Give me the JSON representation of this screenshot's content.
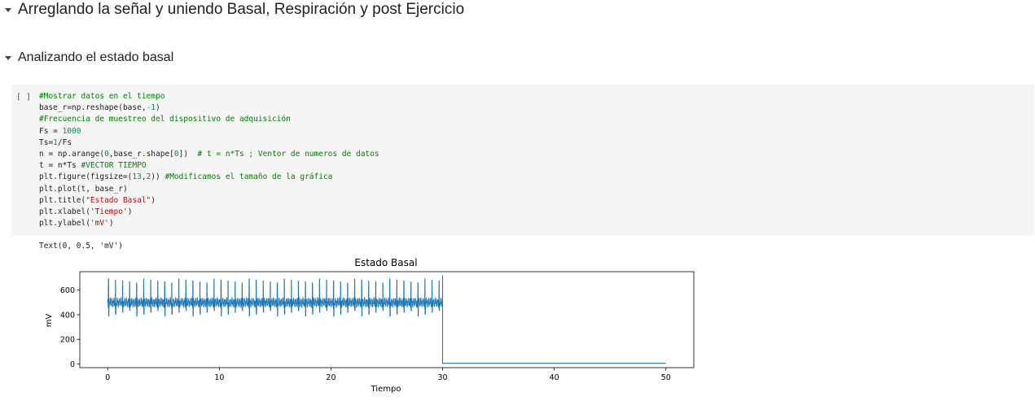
{
  "sections": [
    {
      "title": "Arreglando la señal y uniendo Basal, Respiración y post Ejercicio"
    },
    {
      "title": "Analizando el estado basal"
    }
  ],
  "cell": {
    "run_indicator": "[ ]",
    "code_lines": [
      [
        {
          "t": "#Mostrar datos en el tiempo",
          "c": "c"
        }
      ],
      [
        {
          "t": "base_r=np.reshape(base,"
        },
        {
          "t": "-1",
          "c": "n"
        },
        {
          "t": ")"
        }
      ],
      [
        {
          "t": "#Frecuencia de muestreo del dispositivo de adquisición",
          "c": "c"
        }
      ],
      [
        {
          "t": "Fs = "
        },
        {
          "t": "1000",
          "c": "n"
        }
      ],
      [
        {
          "t": "Ts="
        },
        {
          "t": "1",
          "c": "n"
        },
        {
          "t": "/Fs"
        }
      ],
      [
        {
          "t": "n = np.arange("
        },
        {
          "t": "0",
          "c": "n"
        },
        {
          "t": ",base_r.shape["
        },
        {
          "t": "0",
          "c": "n"
        },
        {
          "t": "])  "
        },
        {
          "t": "# t = n*Ts ; Ventor de numeros de datos",
          "c": "c"
        }
      ],
      [
        {
          "t": "t = n*Ts "
        },
        {
          "t": "#VECTOR TIEMPO",
          "c": "c"
        }
      ],
      [
        {
          "t": "plt.figure(figsize=("
        },
        {
          "t": "13",
          "c": "n"
        },
        {
          "t": ","
        },
        {
          "t": "2",
          "c": "n"
        },
        {
          "t": ")) "
        },
        {
          "t": "#Modificamos el tamaño de la gráfica",
          "c": "c"
        }
      ],
      [
        {
          "t": "plt.plot(t, base_r)"
        }
      ],
      [
        {
          "t": "plt.title("
        },
        {
          "t": "\"Estado Basal\"",
          "c": "s"
        },
        {
          "t": ")"
        }
      ],
      [
        {
          "t": "plt.xlabel("
        },
        {
          "t": "'Tiempo'",
          "c": "s"
        },
        {
          "t": ")"
        }
      ],
      [
        {
          "t": "plt.ylabel("
        },
        {
          "t": "'mV'",
          "c": "s"
        },
        {
          "t": ")"
        }
      ]
    ],
    "output_text": "Text(0, 0.5, 'mV')"
  },
  "colors": {
    "comment": "#008000",
    "number": "#098658",
    "string": "#a31515",
    "line": "#1f77b4",
    "cell_bg": "#f5f5f5"
  },
  "chart_data": {
    "type": "line",
    "title": "Estado Basal",
    "xlabel": "Tiempo",
    "ylabel": "mV",
    "xlim": [
      -2.5,
      52.5
    ],
    "ylim": [
      -30,
      750
    ],
    "xticks": [
      0,
      10,
      20,
      30,
      40,
      50
    ],
    "yticks": [
      0,
      200,
      400,
      600
    ],
    "grid": false,
    "legend": "none",
    "description_points": {
      "baseline_mV": 500,
      "peak_mV": 690,
      "trough_mV": 390,
      "beat_period_s": 0.63,
      "signal_end_s": 30,
      "flat_level_mV": 5,
      "flat_end_s": 50
    }
  }
}
